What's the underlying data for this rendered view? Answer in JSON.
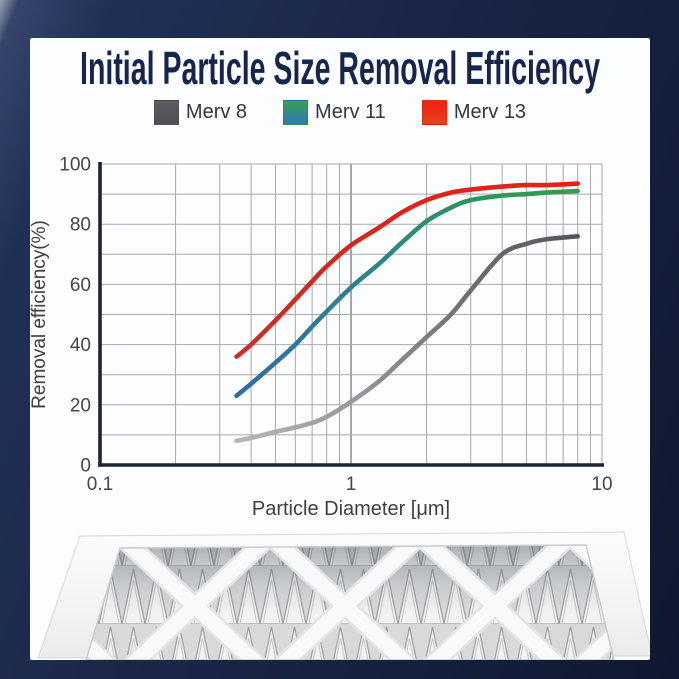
{
  "page": {
    "background_color": "#1a2648",
    "card_color": "#fcfdfe"
  },
  "header": {
    "title": "Initial Particle Size Removal Efficiency",
    "title_color": "#16254d"
  },
  "legend": {
    "items": [
      {
        "label": "Merv 8",
        "colors": [
          "#5c5d62",
          "#4f5055"
        ]
      },
      {
        "label": "Merv 11",
        "colors": [
          "#3aa04a",
          "#2e77c3"
        ]
      },
      {
        "label": "Merv 13",
        "colors": [
          "#ee2212",
          "#e8411f"
        ]
      }
    ]
  },
  "chart_data": {
    "type": "line",
    "x_scale": "log",
    "title": "",
    "xlabel": "Particle Diameter [μm]",
    "ylabel": "Removal efficiency(%)",
    "xlim": [
      0.1,
      10
    ],
    "ylim": [
      0,
      100
    ],
    "x_ticks": [
      {
        "value": 0.1,
        "label": "0.1"
      },
      {
        "value": 1,
        "label": "1"
      },
      {
        "value": 10,
        "label": "10"
      }
    ],
    "y_ticks": [
      0,
      20,
      40,
      60,
      80,
      100
    ],
    "grid": {
      "horizontal_step": 10,
      "x_minor_decades": true,
      "color": "#a9a9ad"
    },
    "legend_position": "top",
    "x": [
      0.35,
      0.4,
      0.5,
      0.6,
      0.7,
      0.8,
      1,
      1.3,
      1.6,
      2,
      2.5,
      3,
      4,
      5,
      6,
      8
    ],
    "series": [
      {
        "name": "Merv 8",
        "values": [
          8,
          9,
          11,
          12.5,
          14,
          16,
          21,
          28,
          35,
          42.5,
          50,
          58,
          70,
          73.5,
          75,
          76
        ],
        "gradient": [
          "#b7b7bb",
          "#98989d",
          "#6f6f74",
          "#55555a"
        ]
      },
      {
        "name": "Merv 11",
        "values": [
          23,
          27,
          34,
          40,
          46,
          51,
          59,
          67,
          74,
          81,
          85.5,
          88,
          89.5,
          90,
          90.5,
          91
        ],
        "gradient": [
          "#2e6ca8",
          "#2b8291",
          "#2c935f",
          "#2fa04b"
        ]
      },
      {
        "name": "Merv 13",
        "values": [
          36,
          40,
          48,
          55,
          61,
          66,
          73,
          79,
          84,
          88,
          90.5,
          91.5,
          92.5,
          93,
          93,
          93.5
        ],
        "gradient": [
          "#c93028",
          "#d8251b",
          "#e2231a",
          "#e2231a"
        ]
      }
    ],
    "axis_color": "#1d2438",
    "tick_label_color": "#45454a"
  },
  "product_image": {
    "name": "pleated-air-filter-photo"
  }
}
